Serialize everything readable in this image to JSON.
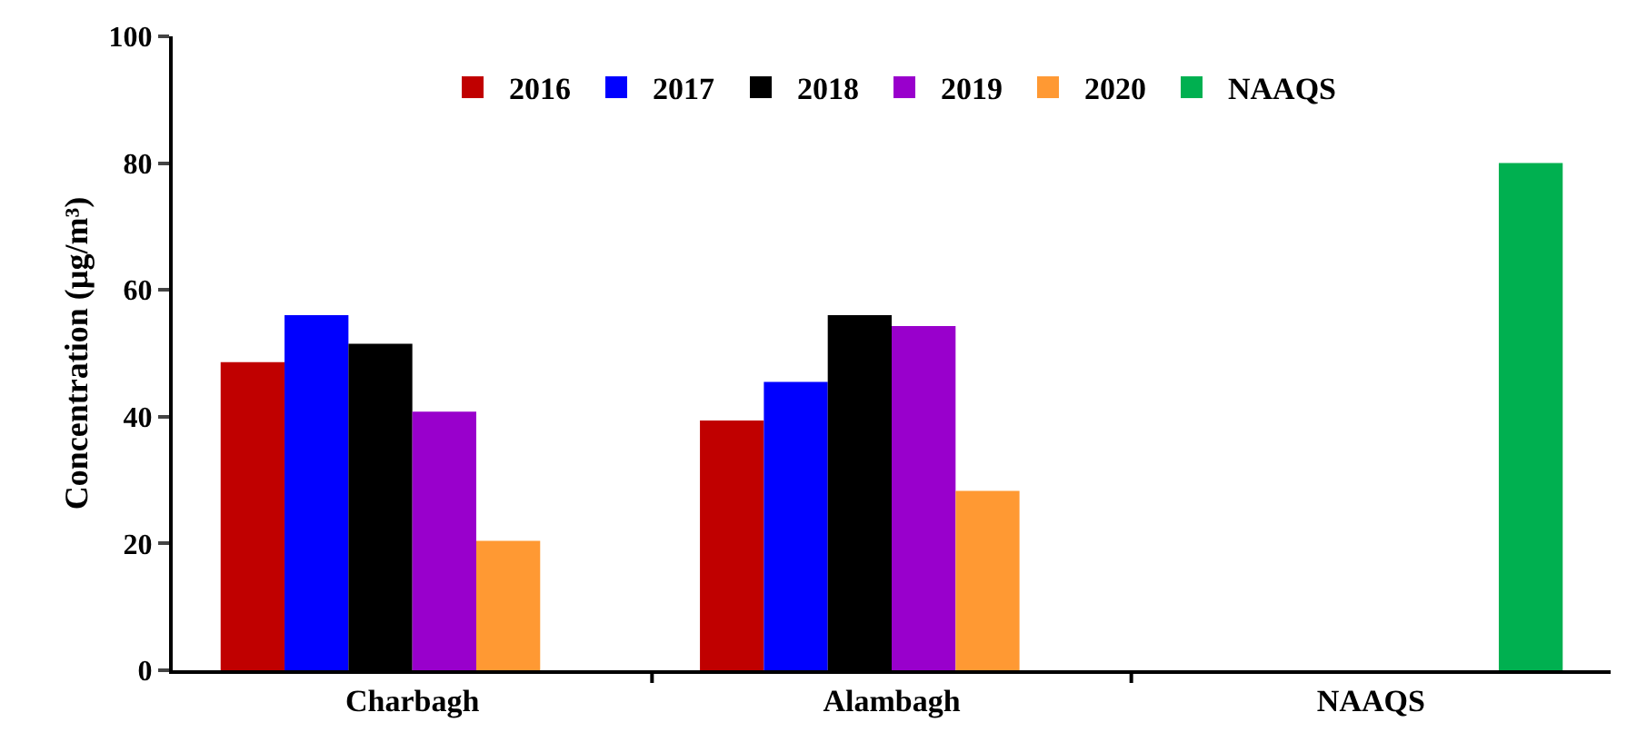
{
  "chart_data": {
    "type": "bar",
    "ylabel": "Concentration (µg/m³)",
    "categories": [
      "Charbagh",
      "Alambagh",
      "NAAQS"
    ],
    "series": [
      {
        "name": "2016",
        "color": "#c00000",
        "values": [
          48.6,
          39.4,
          null
        ]
      },
      {
        "name": "2017",
        "color": "#0000ff",
        "values": [
          56.0,
          45.5,
          null
        ]
      },
      {
        "name": "2018",
        "color": "#000000",
        "values": [
          51.5,
          56.0,
          null
        ]
      },
      {
        "name": "2019",
        "color": "#9900cc",
        "values": [
          40.8,
          54.3,
          null
        ]
      },
      {
        "name": "2020",
        "color": "#ff9933",
        "values": [
          20.4,
          28.3,
          null
        ]
      },
      {
        "name": "NAAQS",
        "color": "#00b050",
        "values": [
          null,
          null,
          80
        ]
      }
    ],
    "ylim": [
      0,
      100
    ],
    "yticks": [
      0,
      20,
      40,
      60,
      80,
      100
    ],
    "grid": false,
    "legend": "top"
  }
}
